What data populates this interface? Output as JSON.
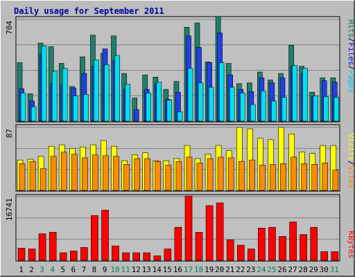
{
  "chart_data": [
    {
      "type": "bar",
      "panel": "hits-files-pages",
      "title": "Daily usage for September 2011",
      "ymax_label": "704",
      "ylim": [
        0,
        704
      ],
      "categories": [
        "1",
        "2",
        "3",
        "4",
        "5",
        "6",
        "7",
        "8",
        "9",
        "10",
        "11",
        "12",
        "13",
        "14",
        "15",
        "16",
        "17",
        "18",
        "19",
        "20",
        "21",
        "22",
        "23",
        "24",
        "25",
        "26",
        "27",
        "28",
        "29",
        "30",
        "31"
      ],
      "legend": [
        {
          "name": "Pages",
          "color": "#00c8ff"
        },
        {
          "name": "Files",
          "color": "#0000ff"
        },
        {
          "name": "Hits",
          "color": "#008040"
        }
      ],
      "series": [
        {
          "name": "Hits",
          "color": "#20806a",
          "values": [
            405,
            190,
            540,
            515,
            400,
            240,
            445,
            595,
            470,
            590,
            330,
            160,
            320,
            305,
            220,
            275,
            650,
            680,
            410,
            730,
            400,
            260,
            265,
            340,
            285,
            330,
            525,
            380,
            200,
            300,
            300
          ]
        },
        {
          "name": "Files",
          "color": "#2040e8",
          "values": [
            225,
            140,
            460,
            260,
            255,
            230,
            330,
            380,
            500,
            420,
            220,
            80,
            220,
            260,
            150,
            200,
            590,
            510,
            405,
            610,
            320,
            220,
            205,
            300,
            265,
            300,
            375,
            330,
            170,
            280,
            270
          ]
        },
        {
          "name": "Pages",
          "color": "#00e0f0",
          "values": [
            195,
            100,
            520,
            345,
            365,
            175,
            185,
            425,
            390,
            455,
            255,
            0,
            195,
            270,
            145,
            65,
            365,
            265,
            235,
            405,
            235,
            195,
            115,
            210,
            140,
            165,
            385,
            365,
            175,
            170,
            165
          ]
        }
      ]
    },
    {
      "type": "bar",
      "panel": "visits-sites",
      "ymax_label": "87",
      "ylim": [
        0,
        87
      ],
      "categories": [
        "1",
        "2",
        "3",
        "4",
        "5",
        "6",
        "7",
        "8",
        "9",
        "10",
        "11",
        "12",
        "13",
        "14",
        "15",
        "16",
        "17",
        "18",
        "19",
        "20",
        "21",
        "22",
        "23",
        "24",
        "25",
        "26",
        "27",
        "28",
        "29",
        "30",
        "31"
      ],
      "legend": [
        {
          "name": "Sites",
          "color": "#ff8000"
        },
        {
          "name": "Visits",
          "color": "#ffff00"
        }
      ],
      "series": [
        {
          "name": "Visits",
          "color": "#ffff00",
          "values": [
            42,
            43,
            47,
            61,
            63,
            58,
            60,
            63,
            69,
            61,
            41,
            49,
            52,
            41,
            41,
            44,
            62,
            44,
            50,
            62,
            55,
            87,
            85,
            72,
            70,
            87,
            78,
            53,
            51,
            62,
            62
          ]
        },
        {
          "name": "Sites",
          "color": "#ff8c00",
          "values": [
            37,
            40,
            30,
            47,
            53,
            50,
            45,
            49,
            48,
            47,
            36,
            44,
            44,
            40,
            35,
            40,
            46,
            38,
            44,
            46,
            45,
            40,
            42,
            35,
            36,
            37,
            46,
            37,
            36,
            38,
            28
          ]
        }
      ]
    },
    {
      "type": "bar",
      "panel": "kbytes",
      "ymax_label": "16741",
      "ylim": [
        0,
        16741
      ],
      "categories": [
        "1",
        "2",
        "3",
        "4",
        "5",
        "6",
        "7",
        "8",
        "9",
        "10",
        "11",
        "12",
        "13",
        "14",
        "15",
        "16",
        "17",
        "18",
        "19",
        "20",
        "21",
        "22",
        "23",
        "24",
        "25",
        "26",
        "27",
        "28",
        "29",
        "30",
        "31"
      ],
      "legend": [
        {
          "name": "KBytes",
          "color": "#ff0000"
        }
      ],
      "series": [
        {
          "name": "KBytes",
          "color": "#ff0000",
          "values": [
            3200,
            3000,
            7000,
            7400,
            2000,
            2500,
            3400,
            11800,
            13200,
            3800,
            2000,
            2000,
            2000,
            1200,
            3000,
            8700,
            16900,
            7400,
            14400,
            15100,
            5400,
            4000,
            3000,
            8500,
            8700,
            6300,
            10100,
            6800,
            8700,
            2300,
            2300
          ]
        }
      ]
    }
  ],
  "x_axis": {
    "labels": [
      "1",
      "2",
      "3",
      "4",
      "5",
      "6",
      "7",
      "8",
      "9",
      "10",
      "11",
      "12",
      "13",
      "14",
      "15",
      "16",
      "17",
      "18",
      "19",
      "20",
      "21",
      "22",
      "23",
      "24",
      "25",
      "26",
      "27",
      "28",
      "29",
      "30",
      "31"
    ],
    "weekend_days": [
      "3",
      "4",
      "10",
      "11",
      "17",
      "18",
      "24",
      "25",
      "31"
    ],
    "weekday_color": "#000000",
    "weekend_color": "#00805c"
  },
  "colors": {
    "background": "#bcbcbc",
    "plot": "#c0c0c0",
    "title": "#0000a0",
    "gridline": "#808080"
  }
}
